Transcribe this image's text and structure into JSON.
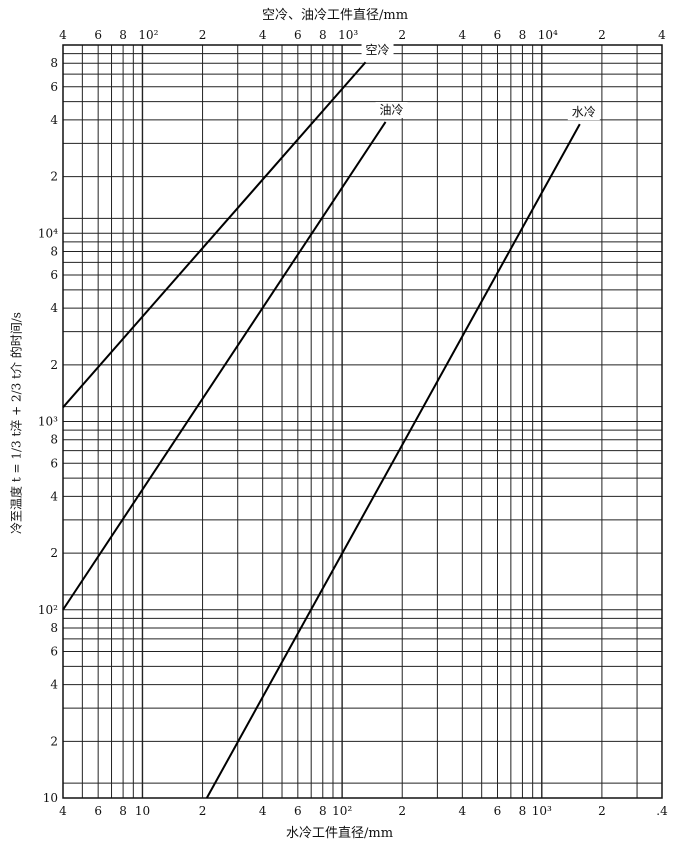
{
  "chart_data": {
    "type": "line",
    "top_xlabel": "空冷、油冷工件直径/mm",
    "bottom_xlabel": "水冷工件直径/mm",
    "ylabel": "冷至温度 t = 1/3 t淬 + 2/3 t介 的时间/s",
    "x_scale": "log",
    "y_scale": "log",
    "bottom_xlim": [
      4,
      4000
    ],
    "top_xlim": [
      40,
      40000
    ],
    "ylim": [
      10,
      100000
    ],
    "grid": true,
    "bottom_tick_labels": [
      "4",
      "6",
      "8",
      "10",
      "2",
      "4",
      "6",
      "8",
      "10²",
      "2",
      "4",
      "6",
      "8",
      "10³",
      "2",
      ".4"
    ],
    "top_tick_labels": [
      "4",
      "6",
      "8",
      "10²",
      "2",
      "4",
      "6",
      "8",
      "10³",
      "2",
      "4",
      "6",
      "8",
      "10⁴",
      "2",
      "4"
    ],
    "y_tick_labels": [
      "10",
      "2",
      "4",
      "6",
      "8",
      "10²",
      "2",
      "4",
      "6",
      "8",
      "10³",
      "2",
      "4",
      "6",
      "8",
      "10⁴",
      "2",
      "4",
      "6",
      "8"
    ],
    "series": [
      {
        "name": "空冷",
        "axis": "top",
        "x": [
          40,
          1310
        ],
        "y": [
          1190,
          81000
        ]
      },
      {
        "name": "油冷",
        "axis": "top",
        "x": [
          40,
          1650
        ],
        "y": [
          100,
          39000
        ]
      },
      {
        "name": "水冷",
        "axis": "bottom",
        "x": [
          21,
          1550
        ],
        "y": [
          10,
          38000
        ]
      }
    ]
  }
}
